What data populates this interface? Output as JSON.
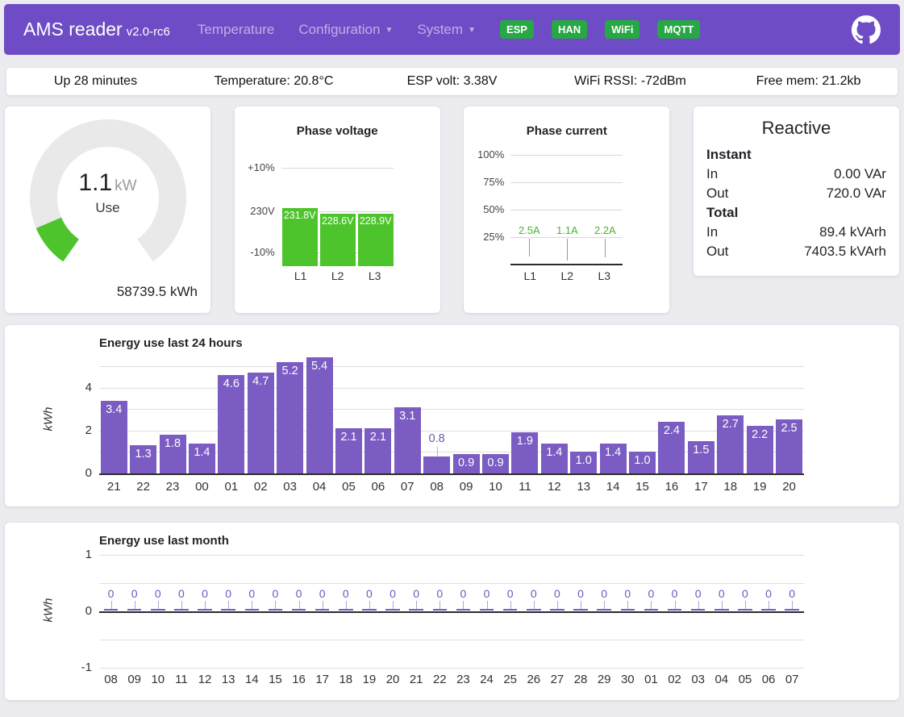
{
  "navbar": {
    "brand": "AMS reader",
    "version": "v2.0-rc6",
    "menu": [
      {
        "label": "Temperature",
        "dropdown": false
      },
      {
        "label": "Configuration",
        "dropdown": true
      },
      {
        "label": "System",
        "dropdown": true
      }
    ],
    "badges": [
      "ESP",
      "HAN",
      "WiFi",
      "MQTT"
    ]
  },
  "statusbar": {
    "items": [
      "Up 28 minutes",
      "Temperature: 20.8°C",
      "ESP volt: 3.38V",
      "WiFi RSSI: -72dBm",
      "Free mem: 21.2kb"
    ]
  },
  "gauge": {
    "value": "1.1",
    "unit": "kW",
    "label": "Use",
    "total": "58739.5 kWh"
  },
  "reactive": {
    "title": "Reactive",
    "sections": [
      {
        "header": "Instant",
        "rows": [
          {
            "label": "In",
            "value": "0.00 VAr"
          },
          {
            "label": "Out",
            "value": "720.0 VAr"
          }
        ]
      },
      {
        "header": "Total",
        "rows": [
          {
            "label": "In",
            "value": "89.4 kVArh"
          },
          {
            "label": "Out",
            "value": "7403.5 kVArh"
          }
        ]
      }
    ]
  },
  "colors": {
    "navbar_purple": "#6e4cc5",
    "badge_green": "#28a745",
    "chart_green": "#4ec42c",
    "bar_purple": "#7a5cc2"
  },
  "chart_data": [
    {
      "type": "bar",
      "title": "Phase voltage",
      "yticks": [
        "+10%",
        "230V",
        "-10%"
      ],
      "categories": [
        "L1",
        "L2",
        "L3"
      ],
      "values": [
        231.8,
        228.6,
        228.9
      ],
      "labels": [
        "231.8V",
        "228.6V",
        "228.9V"
      ],
      "baseline": 230,
      "range_pct": 10,
      "legend_position": "none",
      "grid": true
    },
    {
      "type": "bar",
      "title": "Phase current",
      "yticks": [
        "100%",
        "75%",
        "50%",
        "25%"
      ],
      "categories": [
        "L1",
        "L2",
        "L3"
      ],
      "values": [
        2.5,
        1.1,
        2.2
      ],
      "labels": [
        "2.5A",
        "1.1A",
        "2.2A"
      ],
      "ymax_amps": 40,
      "legend_position": "none",
      "grid": true
    },
    {
      "type": "bar",
      "title": "Energy use last 24 hours",
      "ylabel": "kWh",
      "yticks": [
        0,
        2,
        4
      ],
      "ylim": [
        0,
        5.5
      ],
      "categories": [
        "21",
        "22",
        "23",
        "00",
        "01",
        "02",
        "03",
        "04",
        "05",
        "06",
        "07",
        "08",
        "09",
        "10",
        "11",
        "12",
        "13",
        "14",
        "15",
        "16",
        "17",
        "18",
        "19",
        "20"
      ],
      "values": [
        3.4,
        1.3,
        1.8,
        1.4,
        4.6,
        4.7,
        5.2,
        5.4,
        2.1,
        2.1,
        3.1,
        0.8,
        0.9,
        0.9,
        1.9,
        1.4,
        1.0,
        1.4,
        1.0,
        2.4,
        1.5,
        2.7,
        2.2,
        2.5
      ],
      "legend_position": "none",
      "grid": true
    },
    {
      "type": "bar",
      "title": "Energy use last month",
      "ylabel": "kWh",
      "yticks": [
        1,
        0,
        -1
      ],
      "ylim": [
        -1,
        1
      ],
      "categories": [
        "08",
        "09",
        "10",
        "11",
        "12",
        "13",
        "14",
        "15",
        "16",
        "17",
        "18",
        "19",
        "20",
        "21",
        "22",
        "23",
        "24",
        "25",
        "26",
        "27",
        "28",
        "29",
        "30",
        "01",
        "02",
        "03",
        "04",
        "05",
        "06",
        "07"
      ],
      "values": [
        0,
        0,
        0,
        0,
        0,
        0,
        0,
        0,
        0,
        0,
        0,
        0,
        0,
        0,
        0,
        0,
        0,
        0,
        0,
        0,
        0,
        0,
        0,
        0,
        0,
        0,
        0,
        0,
        0,
        0
      ],
      "legend_position": "none",
      "grid": true
    }
  ]
}
